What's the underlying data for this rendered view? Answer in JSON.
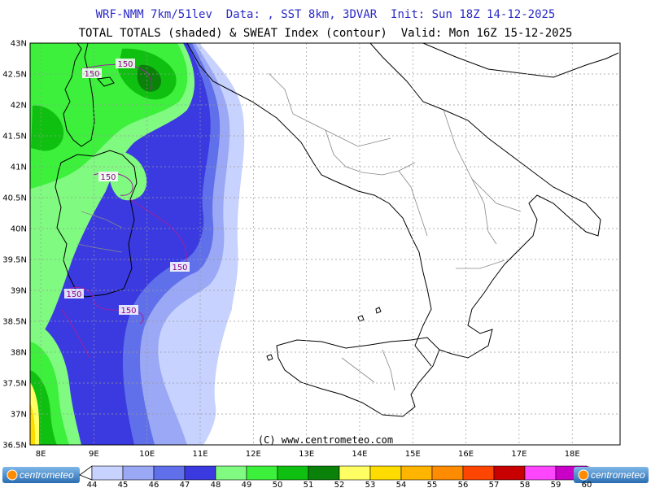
{
  "header": {
    "line1": "WRF-NMM 7km/51lev  Data: , SST 8km, 3DVAR  Init: Sun 18Z 14-12-2025",
    "line2": "TOTAL TOTALS (shaded) & SWEAT Index (contour)  Valid: Mon 16Z 15-12-2025"
  },
  "copyright": "(C) www.centrometeo.com",
  "logo_text": "centrometeo",
  "axes": {
    "lon_ticks": [
      {
        "value": 8,
        "label": "8E"
      },
      {
        "value": 9,
        "label": "9E"
      },
      {
        "value": 10,
        "label": "10E"
      },
      {
        "value": 11,
        "label": "11E"
      },
      {
        "value": 12,
        "label": "12E"
      },
      {
        "value": 13,
        "label": "13E"
      },
      {
        "value": 14,
        "label": "14E"
      },
      {
        "value": 15,
        "label": "15E"
      },
      {
        "value": 16,
        "label": "16E"
      },
      {
        "value": 17,
        "label": "17E"
      },
      {
        "value": 18,
        "label": "18E"
      }
    ],
    "lat_ticks": [
      {
        "value": 43,
        "label": "43N"
      },
      {
        "value": 42.5,
        "label": "42.5N"
      },
      {
        "value": 42,
        "label": "42N"
      },
      {
        "value": 41.5,
        "label": "41.5N"
      },
      {
        "value": 41,
        "label": "41N"
      },
      {
        "value": 40.5,
        "label": "40.5N"
      },
      {
        "value": 40,
        "label": "40N"
      },
      {
        "value": 39.5,
        "label": "39.5N"
      },
      {
        "value": 39,
        "label": "39N"
      },
      {
        "value": 38.5,
        "label": "38.5N"
      },
      {
        "value": 38,
        "label": "38N"
      },
      {
        "value": 37.5,
        "label": "37.5N"
      },
      {
        "value": 37,
        "label": "37N"
      },
      {
        "value": 36.5,
        "label": "36.5N"
      }
    ]
  },
  "contour_labels": [
    "150",
    "150",
    "150",
    "150",
    "150",
    "150"
  ],
  "legend": {
    "values": [
      "44",
      "45",
      "46",
      "47",
      "48",
      "49",
      "50",
      "51",
      "52",
      "53",
      "54",
      "55",
      "56",
      "57",
      "58",
      "59",
      "60"
    ],
    "colors": [
      "#c8d2ff",
      "#9aa8f5",
      "#6070ea",
      "#3a3ae0",
      "#80fa80",
      "#3cf03c",
      "#10c010",
      "#0a820a",
      "#ffff64",
      "#ffdc00",
      "#ffb400",
      "#ff8c00",
      "#ff4600",
      "#c80000",
      "#ff46ff",
      "#c800c8",
      "#780078"
    ]
  }
}
